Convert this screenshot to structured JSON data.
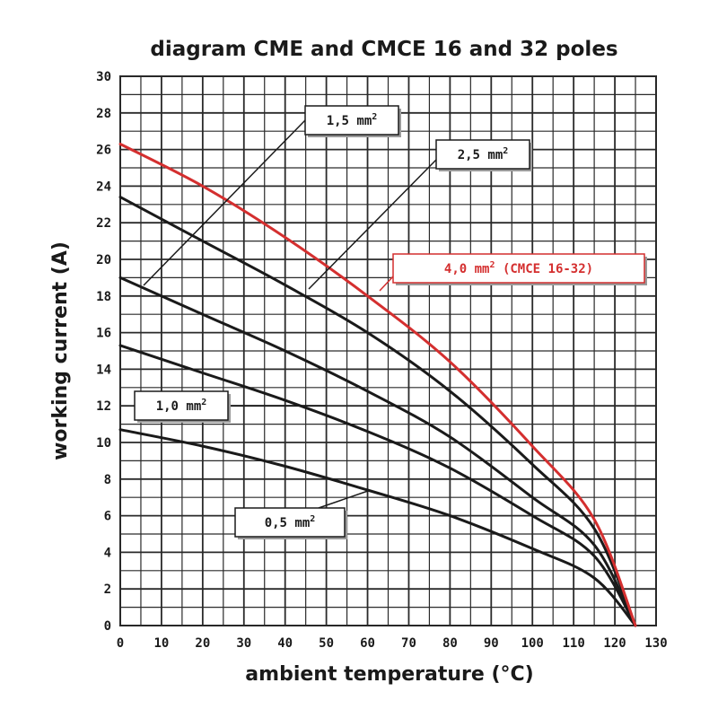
{
  "chart_data": {
    "type": "line",
    "title": "diagram CME and CMCE 16 and 32 poles",
    "xlabel": "ambient temperature (°C)",
    "ylabel": "working current (A)",
    "xlim": [
      0,
      130
    ],
    "ylim": [
      0,
      30
    ],
    "x_ticks": [
      "0",
      "10",
      "20",
      "30",
      "40",
      "50",
      "60",
      "70",
      "80",
      "90",
      "100",
      "110",
      "120",
      "130"
    ],
    "y_ticks": [
      "0",
      "2",
      "4",
      "6",
      "8",
      "10",
      "12",
      "14",
      "16",
      "18",
      "20",
      "22",
      "24",
      "26",
      "28",
      "30"
    ],
    "grid": true,
    "series": [
      {
        "name": "0,5 mm",
        "name_sup": "2",
        "color": "#1a1a1a",
        "x": [
          0,
          20,
          40,
          60,
          80,
          100,
          115,
          125
        ],
        "y": [
          10.7,
          9.8,
          8.7,
          7.4,
          6.0,
          4.2,
          2.6,
          0
        ]
      },
      {
        "name": "1,0 mm",
        "name_sup": "2",
        "color": "#1a1a1a",
        "x": [
          0,
          20,
          40,
          60,
          80,
          100,
          115,
          125
        ],
        "y": [
          15.3,
          13.8,
          12.3,
          10.6,
          8.6,
          6.0,
          3.8,
          0
        ]
      },
      {
        "name": "1,5 mm",
        "name_sup": "2",
        "color": "#1a1a1a",
        "x": [
          0,
          20,
          40,
          60,
          80,
          100,
          115,
          125
        ],
        "y": [
          19.0,
          17.0,
          15.0,
          12.8,
          10.3,
          7.0,
          4.4,
          0
        ]
      },
      {
        "name": "2,5 mm",
        "name_sup": "2",
        "color": "#1a1a1a",
        "x": [
          0,
          20,
          40,
          60,
          80,
          100,
          115,
          125
        ],
        "y": [
          23.4,
          21.0,
          18.6,
          16.0,
          12.8,
          8.8,
          5.3,
          0
        ]
      },
      {
        "name": "4,0 mm",
        "name_sup": "2",
        "name_suffix": " (CMCE 16-32)",
        "color": "#d42f2f",
        "x": [
          0,
          20,
          40,
          60,
          80,
          100,
          115,
          125
        ],
        "y": [
          26.3,
          24.0,
          21.2,
          18.0,
          14.4,
          9.8,
          5.8,
          0
        ]
      }
    ]
  }
}
